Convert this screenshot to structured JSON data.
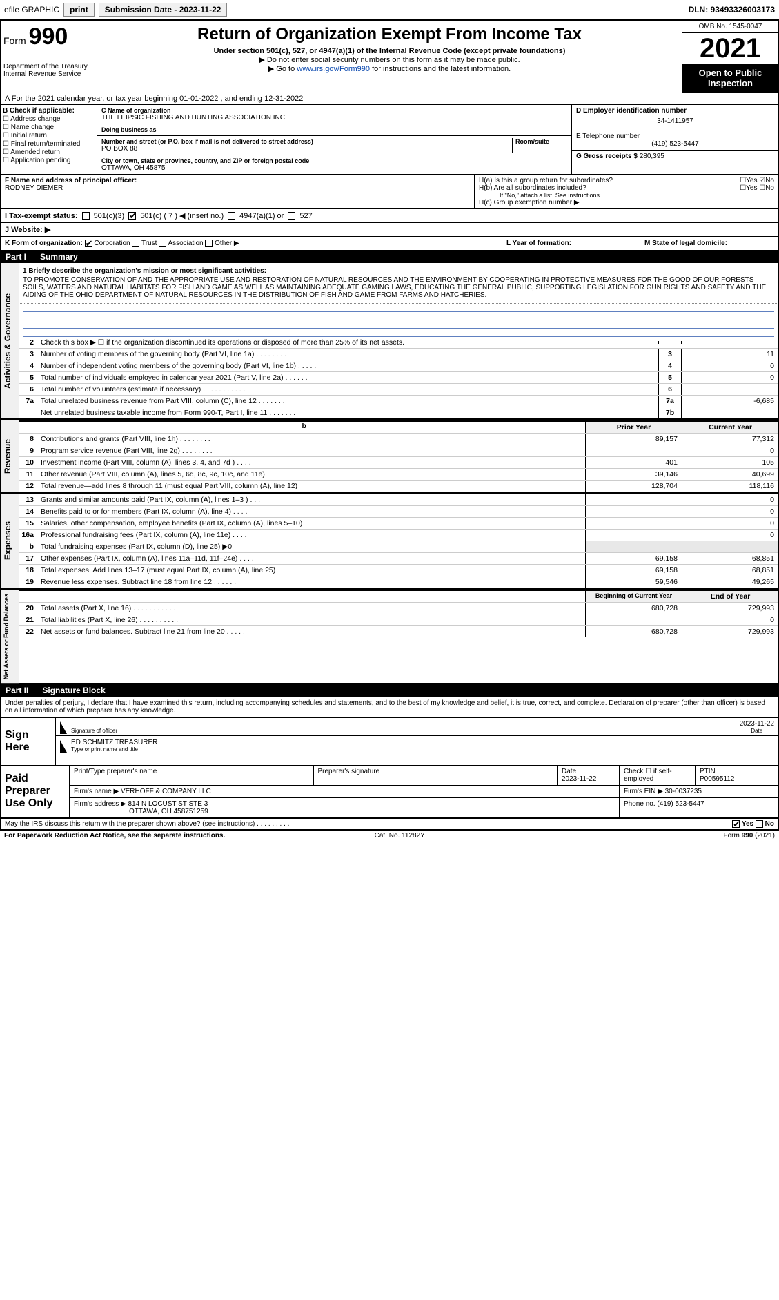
{
  "topbar": {
    "efile": "efile GRAPHIC",
    "print": "print",
    "subdate_label": "Submission Date - 2023-11-22",
    "dln": "DLN: 93493326003173"
  },
  "header": {
    "form_label": "Form",
    "form_num": "990",
    "title": "Return of Organization Exempt From Income Tax",
    "subtitle": "Under section 501(c), 527, or 4947(a)(1) of the Internal Revenue Code (except private foundations)",
    "hint1": "▶ Do not enter social security numbers on this form as it may be made public.",
    "hint2_pre": "▶ Go to ",
    "hint2_link": "www.irs.gov/Form990",
    "hint2_post": " for instructions and the latest information.",
    "dept": "Department of the Treasury\nInternal Revenue Service",
    "omb": "OMB No. 1545-0047",
    "year": "2021",
    "open": "Open to Public Inspection"
  },
  "section_a": "A  For the 2021 calendar year, or tax year beginning 01-01-2022   , and ending 12-31-2022",
  "col_b": {
    "label": "B Check if applicable:",
    "items": [
      "Address change",
      "Name change",
      "Initial return",
      "Final return/terminated",
      "Amended return",
      "Application pending"
    ]
  },
  "col_c": {
    "c_label": "C Name of organization",
    "org": "THE LEIPSIC FISHING AND HUNTING ASSOCIATION INC",
    "dba_label": "Doing business as",
    "addr_label": "Number and street (or P.O. box if mail is not delivered to street address)",
    "room_label": "Room/suite",
    "addr": "PO BOX 88",
    "city_label": "City or town, state or province, country, and ZIP or foreign postal code",
    "city": "OTTAWA, OH  45875"
  },
  "col_d": {
    "d_label": "D Employer identification number",
    "ein": "34-1411957",
    "e_label": "E Telephone number",
    "phone": "(419) 523-5447",
    "g_label": "G Gross receipts $",
    "gross": "280,395"
  },
  "row_f": {
    "f_label": "F  Name and address of principal officer:",
    "officer": "RODNEY DIEMER",
    "ha_label": "H(a)  Is this a group return for subordinates?",
    "hb_label": "H(b)  Are all subordinates included?",
    "hb_note": "If \"No,\" attach a list. See instructions.",
    "hc_label": "H(c)  Group exemption number ▶"
  },
  "row_i": {
    "label": "I    Tax-exempt status:",
    "c3": "501(c)(3)",
    "c": "501(c) ( 7 ) ◀ (insert no.)",
    "a1": "4947(a)(1) or",
    "s527": "527"
  },
  "row_j": {
    "label": "J    Website: ▶"
  },
  "row_k": {
    "k_label": "K Form of organization:",
    "opts": [
      "Corporation",
      "Trust",
      "Association",
      "Other ▶"
    ],
    "l_label": "L Year of formation:",
    "m_label": "M State of legal domicile:"
  },
  "part1": {
    "no": "Part I",
    "title": "Summary"
  },
  "mission": {
    "line1_label": "1   Briefly describe the organization's mission or most significant activities:",
    "text": "TO PROMOTE CONSERVATION OF AND THE APPROPRIATE USE AND RESTORATION OF NATURAL RESOURCES AND THE ENVIRONMENT BY COOPERATING IN PROTECTIVE MEASURES FOR THE GOOD OF OUR FORESTS SOILS, WATERS AND NATURAL HABITATS FOR FISH AND GAME AS WELL AS MAINTAINING ADEQUATE GAMING LAWS, EDUCATING THE GENERAL PUBLIC, SUPPORTING LEGISLATION FOR GUN RIGHTS AND SAFETY AND THE AIDING OF THE OHIO DEPARTMENT OF NATURAL RESOURCES IN THE DISTRIBUTION OF FISH AND GAME FROM FARMS AND HATCHERIES."
  },
  "gov_lines": [
    {
      "n": "2",
      "d": "Check this box ▶ ☐ if the organization discontinued its operations or disposed of more than 25% of its net assets.",
      "box": "",
      "v": ""
    },
    {
      "n": "3",
      "d": "Number of voting members of the governing body (Part VI, line 1a)  .    .    .    .    .    .    .    .",
      "box": "3",
      "v": "11"
    },
    {
      "n": "4",
      "d": "Number of independent voting members of the governing body (Part VI, line 1b)  .    .    .    .    .",
      "box": "4",
      "v": "0"
    },
    {
      "n": "5",
      "d": "Total number of individuals employed in calendar year 2021 (Part V, line 2a)  .    .    .    .    .    .",
      "box": "5",
      "v": "0"
    },
    {
      "n": "6",
      "d": "Total number of volunteers (estimate if necessary)  .    .    .    .    .    .    .    .    .    .    .",
      "box": "6",
      "v": ""
    },
    {
      "n": "7a",
      "d": "Total unrelated business revenue from Part VIII, column (C), line 12   .    .    .    .    .    .    .",
      "box": "7a",
      "v": "-6,685"
    },
    {
      "n": "",
      "d": "Net unrelated business taxable income from Form 990-T, Part I, line 11  .    .    .    .    .    .    .",
      "box": "7b",
      "v": ""
    }
  ],
  "two_col_hdr": {
    "c1": "Prior Year",
    "c2": "Current Year"
  },
  "revenue": [
    {
      "n": "8",
      "d": "Contributions and grants (Part VIII, line 1h)  .    .    .    .    .    .    .    .",
      "c1": "89,157",
      "c2": "77,312"
    },
    {
      "n": "9",
      "d": "Program service revenue (Part VIII, line 2g)  .    .    .    .    .    .    .    .",
      "c1": "",
      "c2": "0"
    },
    {
      "n": "10",
      "d": "Investment income (Part VIII, column (A), lines 3, 4, and 7d )   .    .    .    .",
      "c1": "401",
      "c2": "105"
    },
    {
      "n": "11",
      "d": "Other revenue (Part VIII, column (A), lines 5, 6d, 8c, 9c, 10c, and 11e)",
      "c1": "39,146",
      "c2": "40,699"
    },
    {
      "n": "12",
      "d": "Total revenue—add lines 8 through 11 (must equal Part VIII, column (A), line 12)",
      "c1": "128,704",
      "c2": "118,116"
    }
  ],
  "expenses": [
    {
      "n": "13",
      "d": "Grants and similar amounts paid (Part IX, column (A), lines 1–3 )  .    .    .",
      "c1": "",
      "c2": "0"
    },
    {
      "n": "14",
      "d": "Benefits paid to or for members (Part IX, column (A), line 4)  .    .    .    .",
      "c1": "",
      "c2": "0"
    },
    {
      "n": "15",
      "d": "Salaries, other compensation, employee benefits (Part IX, column (A), lines 5–10)",
      "c1": "",
      "c2": "0"
    },
    {
      "n": "16a",
      "d": "Professional fundraising fees (Part IX, column (A), line 11e)   .    .    .    .",
      "c1": "",
      "c2": "0"
    },
    {
      "n": "b",
      "d": "Total fundraising expenses (Part IX, column (D), line 25) ▶0",
      "c1": "shade",
      "c2": "shade"
    },
    {
      "n": "17",
      "d": "Other expenses (Part IX, column (A), lines 11a–11d, 11f–24e)  .    .    .    .",
      "c1": "69,158",
      "c2": "68,851"
    },
    {
      "n": "18",
      "d": "Total expenses. Add lines 13–17 (must equal Part IX, column (A), line 25)",
      "c1": "69,158",
      "c2": "68,851"
    },
    {
      "n": "19",
      "d": "Revenue less expenses. Subtract line 18 from line 12  .    .    .    .    .    .",
      "c1": "59,546",
      "c2": "49,265"
    }
  ],
  "net_hdr": {
    "c1": "Beginning of Current Year",
    "c2": "End of Year"
  },
  "net": [
    {
      "n": "20",
      "d": "Total assets (Part X, line 16)  .    .    .    .    .    .    .    .    .    .    .",
      "c1": "680,728",
      "c2": "729,993"
    },
    {
      "n": "21",
      "d": "Total liabilities (Part X, line 26)  .    .    .    .    .    .    .    .    .    .",
      "c1": "",
      "c2": "0"
    },
    {
      "n": "22",
      "d": "Net assets or fund balances. Subtract line 21 from line 20  .    .    .    .    .",
      "c1": "680,728",
      "c2": "729,993"
    }
  ],
  "side_labels": {
    "gov": "Activities & Governance",
    "rev": "Revenue",
    "exp": "Expenses",
    "net": "Net Assets or Fund Balances"
  },
  "part2": {
    "no": "Part II",
    "title": "Signature Block"
  },
  "sig": {
    "declare": "Under penalties of perjury, I declare that I have examined this return, including accompanying schedules and statements, and to the best of my knowledge and belief, it is true, correct, and complete. Declaration of preparer (other than officer) is based on all information of which preparer has any knowledge.",
    "sign_here": "Sign Here",
    "sig_officer_lbl": "Signature of officer",
    "date_lbl": "Date",
    "date": "2023-11-22",
    "officer": "ED SCHMITZ  TREASURER",
    "officer_lbl": "Type or print name and title"
  },
  "paid": {
    "title": "Paid Preparer Use Only",
    "h_name": "Print/Type preparer's name",
    "h_sig": "Preparer's signature",
    "h_date": "Date",
    "date": "2023-11-22",
    "check_lbl": "Check ☐ if self-employed",
    "ptin_lbl": "PTIN",
    "ptin": "P00595112",
    "firm_name_lbl": "Firm's name    ▶",
    "firm_name": "VERHOFF & COMPANY LLC",
    "firm_ein_lbl": "Firm's EIN ▶",
    "firm_ein": "30-0037235",
    "firm_addr_lbl": "Firm's address ▶",
    "firm_addr": "814 N LOCUST ST STE 3",
    "firm_city": "OTTAWA, OH  458751259",
    "phone_lbl": "Phone no.",
    "phone": "(419) 523-5447"
  },
  "bottom": {
    "q": "May the IRS discuss this return with the preparer shown above? (see instructions)   .    .    .    .    .    .    .    .    .",
    "yes": "Yes",
    "no": "No"
  },
  "footer": {
    "left": "For Paperwork Reduction Act Notice, see the separate instructions.",
    "mid": "Cat. No. 11282Y",
    "right": "Form 990 (2021)"
  },
  "colors": {
    "link": "#0645ad",
    "hrline": "#6080c0",
    "shade": "#e8e8e8"
  }
}
